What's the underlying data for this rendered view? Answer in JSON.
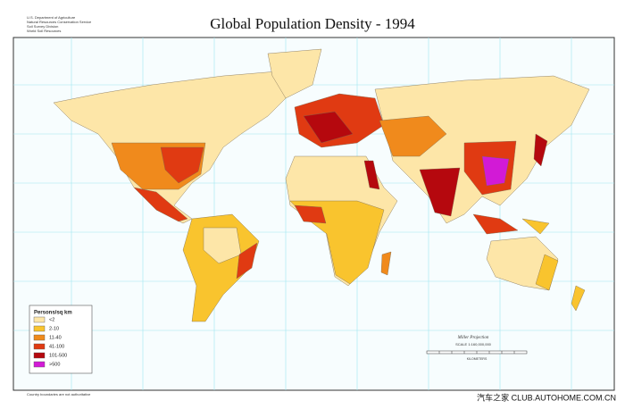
{
  "header": {
    "title": "Global Population Density - 1994",
    "agency": [
      "U.S. Department of Agriculture",
      "Natural Resources Conservation Service",
      "Soil Survey Division",
      "World Soil Resources"
    ]
  },
  "legend": {
    "title": "Persons/sq km",
    "items": [
      {
        "label": "<2",
        "color": "#fde6a8"
      },
      {
        "label": "2-10",
        "color": "#f9c42e"
      },
      {
        "label": "11-40",
        "color": "#f08a1c"
      },
      {
        "label": "41-100",
        "color": "#e03a12"
      },
      {
        "label": "101-500",
        "color": "#b5080e"
      },
      {
        "label": ">500",
        "color": "#d21ad6"
      }
    ]
  },
  "scale": {
    "projection": "Miller Projection",
    "ratio": "SCALE 1:160,000,000",
    "unit": "KILOMETERS"
  },
  "footer": {
    "note": "Country boundaries are not authoritative",
    "watermark": "汽车之家 CLUB.AUTOHOME.COM.CN"
  }
}
